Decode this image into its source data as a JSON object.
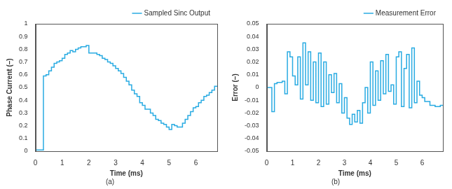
{
  "chart_data": [
    {
      "type": "line",
      "subtitle": "(a)",
      "x_label": "Time (ms)",
      "y_label": "Phase Current (–)",
      "xlim": [
        0,
        6.8
      ],
      "xticks": [
        0,
        1,
        2,
        3,
        4,
        5,
        6
      ],
      "ylim": [
        0,
        1
      ],
      "yticks": [
        0,
        0.1,
        0.2,
        0.3,
        0.4,
        0.5,
        0.6,
        0.7,
        0.8,
        0.9,
        1
      ],
      "grid": false,
      "legend": "top right",
      "x": [
        0,
        0.1,
        0.2,
        0.3,
        0.4,
        0.5,
        0.6,
        0.7,
        0.8,
        0.9,
        1.0,
        1.1,
        1.2,
        1.3,
        1.4,
        1.5,
        1.6,
        1.7,
        1.8,
        1.9,
        2.0,
        2.1,
        2.2,
        2.3,
        2.4,
        2.5,
        2.6,
        2.7,
        2.8,
        2.9,
        3.0,
        3.1,
        3.2,
        3.3,
        3.4,
        3.5,
        3.6,
        3.7,
        3.8,
        3.9,
        4.0,
        4.1,
        4.2,
        4.3,
        4.4,
        4.5,
        4.6,
        4.7,
        4.8,
        4.9,
        5.0,
        5.1,
        5.2,
        5.3,
        5.4,
        5.5,
        5.6,
        5.7,
        5.8,
        5.9,
        6.0,
        6.1,
        6.2,
        6.3,
        6.4,
        6.5,
        6.6,
        6.7,
        6.8
      ],
      "series": [
        {
          "name": "Sampled Sinc Output",
          "color": "#29abe2",
          "line_style": "step",
          "values": [
            0.01,
            0.01,
            0.01,
            0.59,
            0.6,
            0.63,
            0.66,
            0.69,
            0.7,
            0.71,
            0.73,
            0.76,
            0.77,
            0.79,
            0.78,
            0.8,
            0.81,
            0.82,
            0.82,
            0.83,
            0.77,
            0.77,
            0.77,
            0.76,
            0.75,
            0.73,
            0.72,
            0.7,
            0.69,
            0.67,
            0.65,
            0.63,
            0.61,
            0.58,
            0.55,
            0.52,
            0.48,
            0.45,
            0.43,
            0.38,
            0.36,
            0.33,
            0.33,
            0.3,
            0.28,
            0.25,
            0.24,
            0.22,
            0.21,
            0.19,
            0.17,
            0.21,
            0.2,
            0.19,
            0.19,
            0.22,
            0.25,
            0.28,
            0.31,
            0.34,
            0.35,
            0.38,
            0.4,
            0.43,
            0.44,
            0.46,
            0.48,
            0.51,
            0.51
          ]
        }
      ]
    },
    {
      "type": "line",
      "subtitle": "(b)",
      "x_label": "Time (ms)",
      "y_label": "Error (–)",
      "xlim": [
        0,
        6.8
      ],
      "xticks": [
        0,
        1,
        2,
        3,
        4,
        5,
        6
      ],
      "ylim": [
        -0.05,
        0.05
      ],
      "yticks": [
        -0.05,
        -0.04,
        -0.03,
        -0.02,
        -0.01,
        0,
        0.01,
        0.02,
        0.03,
        0.04,
        0.05
      ],
      "grid": false,
      "legend": "top right",
      "x": [
        0,
        0.1,
        0.2,
        0.3,
        0.4,
        0.5,
        0.6,
        0.7,
        0.8,
        0.9,
        1.0,
        1.1,
        1.2,
        1.3,
        1.4,
        1.5,
        1.6,
        1.7,
        1.8,
        1.9,
        2.0,
        2.1,
        2.2,
        2.3,
        2.4,
        2.5,
        2.6,
        2.7,
        2.8,
        2.9,
        3.0,
        3.1,
        3.2,
        3.3,
        3.4,
        3.5,
        3.6,
        3.7,
        3.8,
        3.9,
        4.0,
        4.1,
        4.2,
        4.3,
        4.4,
        4.5,
        4.6,
        4.7,
        4.8,
        4.9,
        5.0,
        5.1,
        5.2,
        5.3,
        5.4,
        5.5,
        5.6,
        5.7,
        5.8,
        5.9,
        6.0,
        6.1,
        6.2,
        6.3,
        6.4,
        6.5,
        6.6,
        6.7,
        6.8
      ],
      "series": [
        {
          "name": "Measurement Error",
          "color": "#29abe2",
          "line_style": "step",
          "values": [
            0,
            0,
            -0.019,
            0.003,
            0.004,
            0.004,
            0.005,
            -0.005,
            0.028,
            0.024,
            0.009,
            0.002,
            0.024,
            -0.009,
            0.035,
            0.002,
            0.028,
            -0.01,
            0.02,
            -0.012,
            0.027,
            -0.015,
            0.02,
            -0.013,
            0.01,
            -0.004,
            0.011,
            -0.012,
            0.003,
            -0.02,
            -0.008,
            -0.024,
            -0.029,
            -0.021,
            -0.027,
            -0.018,
            -0.028,
            -0.012,
            0.0,
            -0.02,
            0.02,
            -0.014,
            0.013,
            -0.01,
            0.021,
            -0.005,
            0.026,
            -0.003,
            0.002,
            -0.013,
            0.024,
            0.028,
            -0.015,
            0.015,
            0.026,
            -0.016,
            0.031,
            -0.012,
            0.005,
            -0.006,
            -0.008,
            -0.011,
            -0.011,
            -0.014,
            -0.014,
            -0.015,
            -0.015,
            -0.014,
            -0.014
          ]
        }
      ]
    }
  ]
}
